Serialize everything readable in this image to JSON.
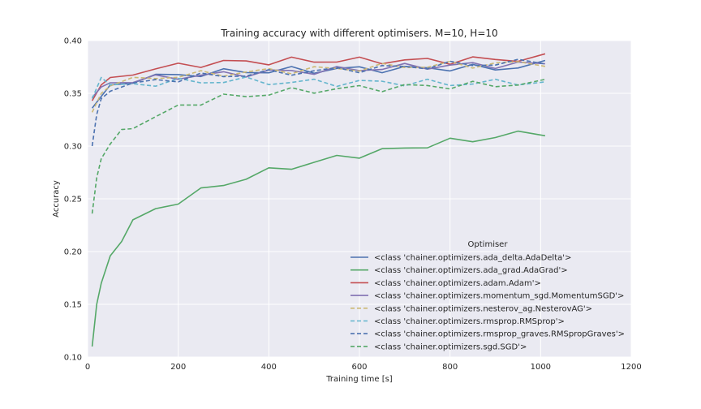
{
  "chart_data": {
    "type": "line",
    "title": "Training accuracy with different optimisers. M=10, H=10",
    "xlabel": "Training time [s]",
    "ylabel": "Accuracy",
    "xlim": [
      0,
      1200
    ],
    "ylim": [
      0.1,
      0.4
    ],
    "xticks": [
      "0",
      "200",
      "400",
      "600",
      "800",
      "1000",
      "1200"
    ],
    "yticks": [
      "0.10",
      "0.15",
      "0.20",
      "0.25",
      "0.30",
      "0.35",
      "0.40"
    ],
    "grid": true,
    "legend": {
      "title": "Optimiser",
      "placement": "lower-right"
    },
    "series": [
      {
        "name": "<class 'chainer.optimizers.ada_delta.AdaDelta'>",
        "color": "#4c72b0",
        "dash": "solid",
        "x": [
          10,
          50,
          100,
          150,
          200,
          250,
          300,
          350,
          400,
          450,
          500,
          550,
          600,
          650,
          700,
          750,
          800,
          850,
          900,
          950,
          1010
        ],
        "y": [
          0.336,
          0.358,
          0.363,
          0.366,
          0.367,
          0.369,
          0.37,
          0.371,
          0.371,
          0.372,
          0.372,
          0.373,
          0.373,
          0.373,
          0.373,
          0.374,
          0.374,
          0.374,
          0.374,
          0.375,
          0.378
        ]
      },
      {
        "name": "<class 'chainer.optimizers.ada_grad.AdaGrad'>",
        "color": "#55a868",
        "dash": "solid",
        "x": [
          10,
          20,
          30,
          50,
          75,
          100,
          150,
          200,
          250,
          300,
          350,
          400,
          450,
          500,
          550,
          600,
          650,
          700,
          750,
          800,
          850,
          900,
          950,
          1010
        ],
        "y": [
          0.11,
          0.15,
          0.17,
          0.196,
          0.213,
          0.228,
          0.24,
          0.248,
          0.257,
          0.264,
          0.27,
          0.276,
          0.281,
          0.284,
          0.289,
          0.292,
          0.295,
          0.298,
          0.301,
          0.304,
          0.306,
          0.309,
          0.311,
          0.313
        ]
      },
      {
        "name": "<class 'chainer.optimizers.adam.Adam'>",
        "color": "#c44e52",
        "dash": "solid",
        "x": [
          10,
          30,
          50,
          100,
          150,
          200,
          250,
          300,
          350,
          400,
          450,
          500,
          550,
          600,
          650,
          700,
          750,
          800,
          850,
          900,
          950,
          1010
        ],
        "y": [
          0.343,
          0.358,
          0.365,
          0.37,
          0.373,
          0.376,
          0.378,
          0.379,
          0.38,
          0.38,
          0.381,
          0.381,
          0.381,
          0.381,
          0.381,
          0.381,
          0.381,
          0.381,
          0.382,
          0.382,
          0.383,
          0.384
        ]
      },
      {
        "name": "<class 'chainer.optimizers.momentum_sgd.MomentumSGD'>",
        "color": "#8172b2",
        "dash": "solid",
        "x": [
          10,
          30,
          50,
          100,
          150,
          200,
          250,
          300,
          350,
          400,
          450,
          500,
          550,
          600,
          650,
          700,
          750,
          800,
          850,
          900,
          950,
          1010
        ],
        "y": [
          0.346,
          0.356,
          0.36,
          0.362,
          0.364,
          0.366,
          0.367,
          0.368,
          0.369,
          0.37,
          0.371,
          0.371,
          0.372,
          0.373,
          0.374,
          0.375,
          0.376,
          0.376,
          0.377,
          0.377,
          0.377,
          0.378
        ]
      },
      {
        "name": "<class 'chainer.optimizers.nesterov_ag.NesterovAG'>",
        "color": "#ccb974",
        "dash": "dashed",
        "x": [
          10,
          30,
          50,
          100,
          150,
          200,
          250,
          300,
          350,
          400,
          450,
          500,
          550,
          600,
          650,
          700,
          750,
          800,
          850,
          900,
          950,
          1010
        ],
        "y": [
          0.332,
          0.35,
          0.357,
          0.362,
          0.365,
          0.367,
          0.368,
          0.369,
          0.37,
          0.371,
          0.372,
          0.373,
          0.373,
          0.374,
          0.375,
          0.376,
          0.376,
          0.377,
          0.377,
          0.378,
          0.378,
          0.379
        ]
      },
      {
        "name": "<class 'chainer.optimizers.rmsprop.RMSprop'>",
        "color": "#64b5cd",
        "dash": "dashed",
        "x": [
          10,
          30,
          50,
          100,
          150,
          200,
          250,
          300,
          350,
          400,
          450,
          500,
          550,
          600,
          650,
          700,
          750,
          800,
          850,
          900,
          950,
          1010
        ],
        "y": [
          0.345,
          0.365,
          0.358,
          0.358,
          0.36,
          0.361,
          0.361,
          0.362,
          0.362,
          0.361,
          0.36,
          0.361,
          0.36,
          0.36,
          0.361,
          0.36,
          0.36,
          0.359,
          0.36,
          0.36,
          0.361,
          0.36
        ]
      },
      {
        "name": "<class 'chainer.optimizers.rmsprop_graves.RMSpropGraves'>",
        "color": "#4c72b0",
        "dash": "dashed",
        "x": [
          10,
          20,
          30,
          50,
          100,
          150,
          200,
          250,
          300,
          350,
          400,
          450,
          500,
          550,
          600,
          650,
          700,
          750,
          800,
          850,
          900,
          950,
          1010
        ],
        "y": [
          0.3,
          0.33,
          0.345,
          0.352,
          0.358,
          0.362,
          0.364,
          0.366,
          0.367,
          0.368,
          0.369,
          0.37,
          0.371,
          0.372,
          0.373,
          0.374,
          0.375,
          0.376,
          0.377,
          0.378,
          0.378,
          0.379,
          0.381
        ]
      },
      {
        "name": "<class 'chainer.optimizers.sgd.SGD'>",
        "color": "#55a868",
        "dash": "dashed",
        "x": [
          10,
          20,
          30,
          50,
          75,
          100,
          150,
          200,
          250,
          300,
          350,
          400,
          450,
          500,
          550,
          600,
          650,
          700,
          750,
          800,
          850,
          900,
          950,
          1010
        ],
        "y": [
          0.236,
          0.27,
          0.288,
          0.302,
          0.313,
          0.32,
          0.326,
          0.338,
          0.342,
          0.346,
          0.348,
          0.35,
          0.352,
          0.353,
          0.354,
          0.355,
          0.355,
          0.356,
          0.357,
          0.357,
          0.358,
          0.358,
          0.359,
          0.36
        ]
      }
    ]
  }
}
